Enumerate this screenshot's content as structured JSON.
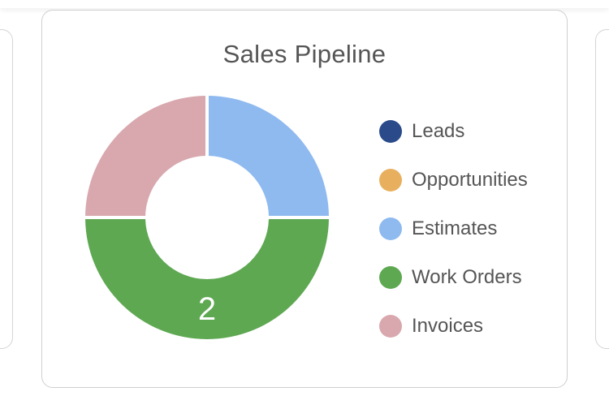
{
  "chart_data": {
    "type": "pie",
    "title": "Sales Pipeline",
    "categories": [
      "Leads",
      "Opportunities",
      "Estimates",
      "Work Orders",
      "Invoices"
    ],
    "values": [
      0,
      0,
      1,
      2,
      1
    ],
    "colors": [
      "#2a4a8a",
      "#e8b05e",
      "#8fbaf0",
      "#5ea852",
      "#d8a8ae"
    ],
    "data_labels": [
      "",
      "",
      "",
      "2",
      ""
    ],
    "hole": true,
    "legend_position": "right"
  }
}
